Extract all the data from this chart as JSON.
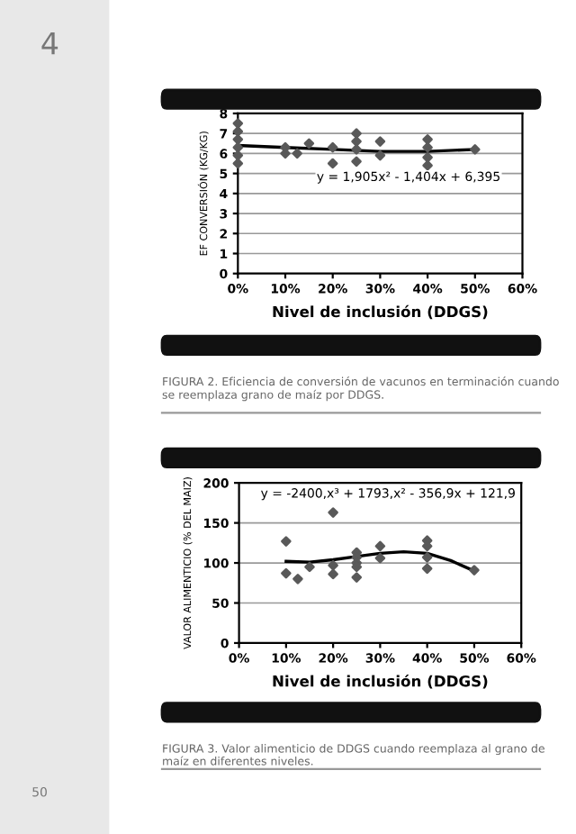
{
  "chart_data": [
    {
      "type": "scatter",
      "xlabel": "Nivel de inclusión (DDGS)",
      "ylabel": "EF CONVERSIÓN (KG/KG)",
      "xlim": [
        0,
        0.6
      ],
      "ylim": [
        0,
        8
      ],
      "xticks": [
        {
          "value": 0,
          "label": "0%"
        },
        {
          "value": 0.1,
          "label": "10%"
        },
        {
          "value": 0.2,
          "label": "20%"
        },
        {
          "value": 0.3,
          "label": "30%"
        },
        {
          "value": 0.4,
          "label": "40%"
        },
        {
          "value": 0.5,
          "label": "50%"
        },
        {
          "value": 0.6,
          "label": "60%"
        }
      ],
      "yticks": [
        0,
        1,
        2,
        3,
        4,
        5,
        6,
        7,
        8
      ],
      "grid": "y",
      "series": [
        {
          "marker": "diamond",
          "color": "#595959",
          "x": [
            0,
            0,
            0,
            0,
            0,
            0,
            0.1,
            0.1,
            0.125,
            0.15,
            0.2,
            0.2,
            0.25,
            0.25,
            0.25,
            0.25,
            0.3,
            0.3,
            0.4,
            0.4,
            0.4,
            0.4,
            0.5
          ],
          "values": [
            7.5,
            7.1,
            6.7,
            6.3,
            5.9,
            5.5,
            6.3,
            6.0,
            6.0,
            6.5,
            6.3,
            5.5,
            7.0,
            6.6,
            6.2,
            5.6,
            6.6,
            5.9,
            6.7,
            6.3,
            5.8,
            5.4,
            6.2
          ]
        },
        {
          "type": "line",
          "color": "#000000",
          "x": [
            0,
            0.1,
            0.2,
            0.3,
            0.4,
            0.5
          ],
          "values": [
            6.4,
            6.3,
            6.2,
            6.1,
            6.1,
            6.2
          ]
        }
      ],
      "annotations": [
        "y = 1,905x² - 1,404x + 6,395",
        "FIGURA 2. Eficiencia de conversión de vacunos en terminación cuando se reemplaza grano de maíz por DDGS.",
        "4"
      ]
    },
    {
      "type": "scatter",
      "xlabel": "Nivel de inclusión (DDGS)",
      "ylabel": "VALOR ALIMENTICIO (% DEL MAIZ)",
      "xlim": [
        0,
        0.6
      ],
      "ylim": [
        0,
        200
      ],
      "xticks": [
        {
          "value": 0,
          "label": "0%"
        },
        {
          "value": 0.1,
          "label": "10%"
        },
        {
          "value": 0.2,
          "label": "20%"
        },
        {
          "value": 0.3,
          "label": "30%"
        },
        {
          "value": 0.4,
          "label": "40%"
        },
        {
          "value": 0.5,
          "label": "50%"
        },
        {
          "value": 0.6,
          "label": "60%"
        }
      ],
      "yticks": [
        0,
        50,
        100,
        150,
        200
      ],
      "grid": "y",
      "series": [
        {
          "marker": "diamond",
          "color": "#595959",
          "x": [
            0.1,
            0.1,
            0.125,
            0.15,
            0.2,
            0.2,
            0.2,
            0.25,
            0.25,
            0.25,
            0.25,
            0.25,
            0.3,
            0.3,
            0.4,
            0.4,
            0.4,
            0.4,
            0.5
          ],
          "values": [
            127,
            87,
            80,
            95,
            163,
            97,
            86,
            113,
            107,
            100,
            95,
            82,
            121,
            106,
            128,
            121,
            107,
            93,
            91
          ]
        },
        {
          "type": "line",
          "color": "#000000",
          "x": [
            0.1,
            0.15,
            0.2,
            0.25,
            0.3,
            0.35,
            0.4,
            0.45,
            0.5
          ],
          "values": [
            102,
            101,
            104,
            108,
            112,
            114,
            112,
            103,
            90
          ]
        }
      ],
      "annotations": [
        "y = -2400,x³ + 1793,x² - 356,9x + 121,9",
        "FIGURA 3. Valor alimenticio de DDGS cuando reemplaza al grano de maíz en diferentes niveles.",
        "50"
      ]
    }
  ]
}
